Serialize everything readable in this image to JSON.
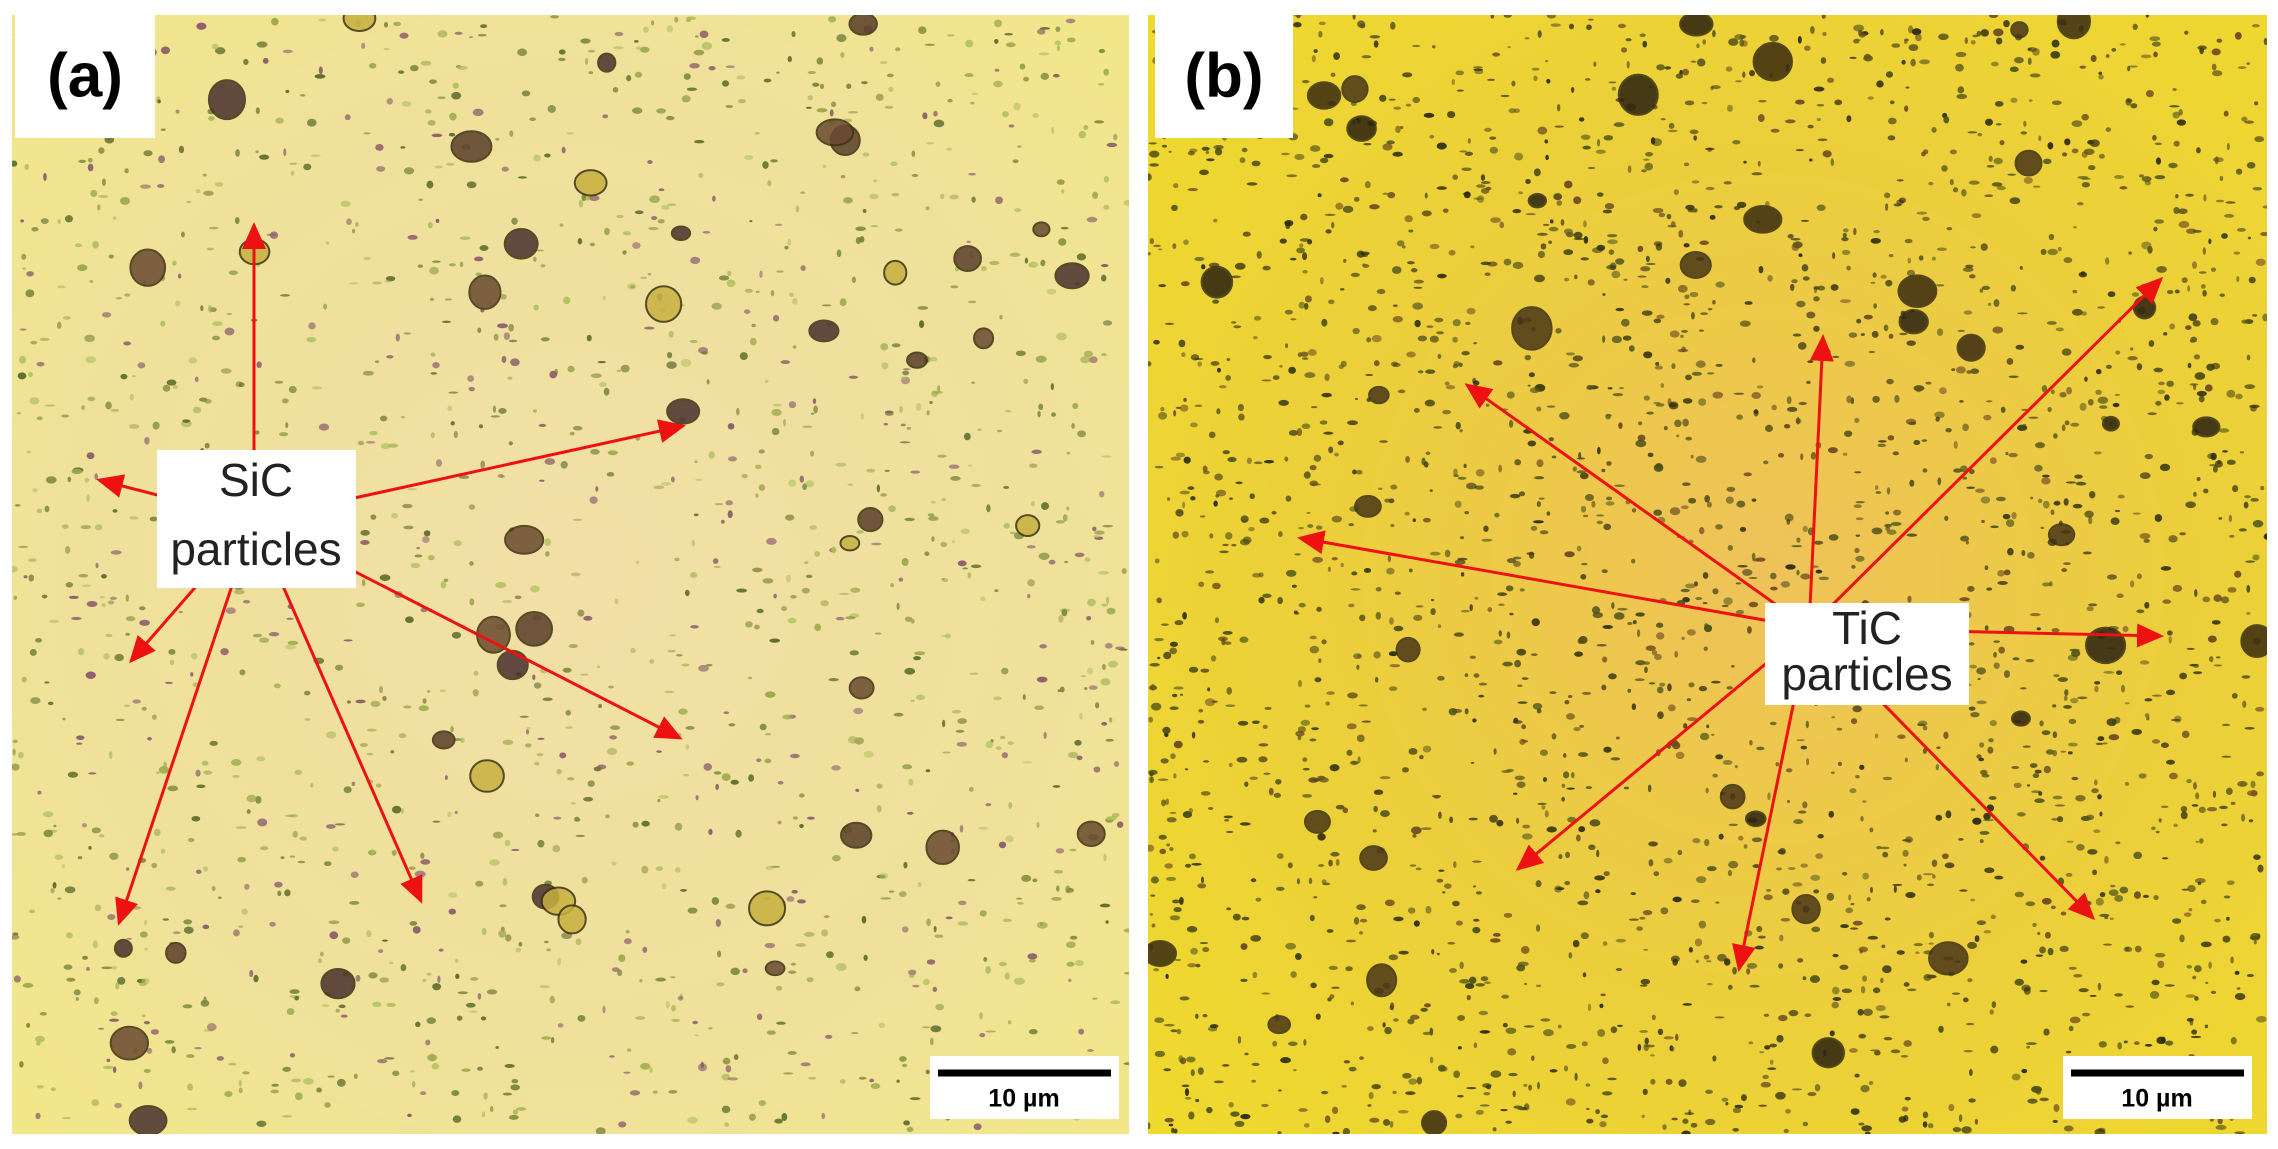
{
  "panels": [
    {
      "label": "(a)",
      "annotation": [
        "SiC",
        "particles"
      ],
      "scale_bar": "10 µm"
    },
    {
      "label": "(b)",
      "annotation": [
        "TiC",
        "particles"
      ],
      "scale_bar": "10 µm"
    }
  ]
}
